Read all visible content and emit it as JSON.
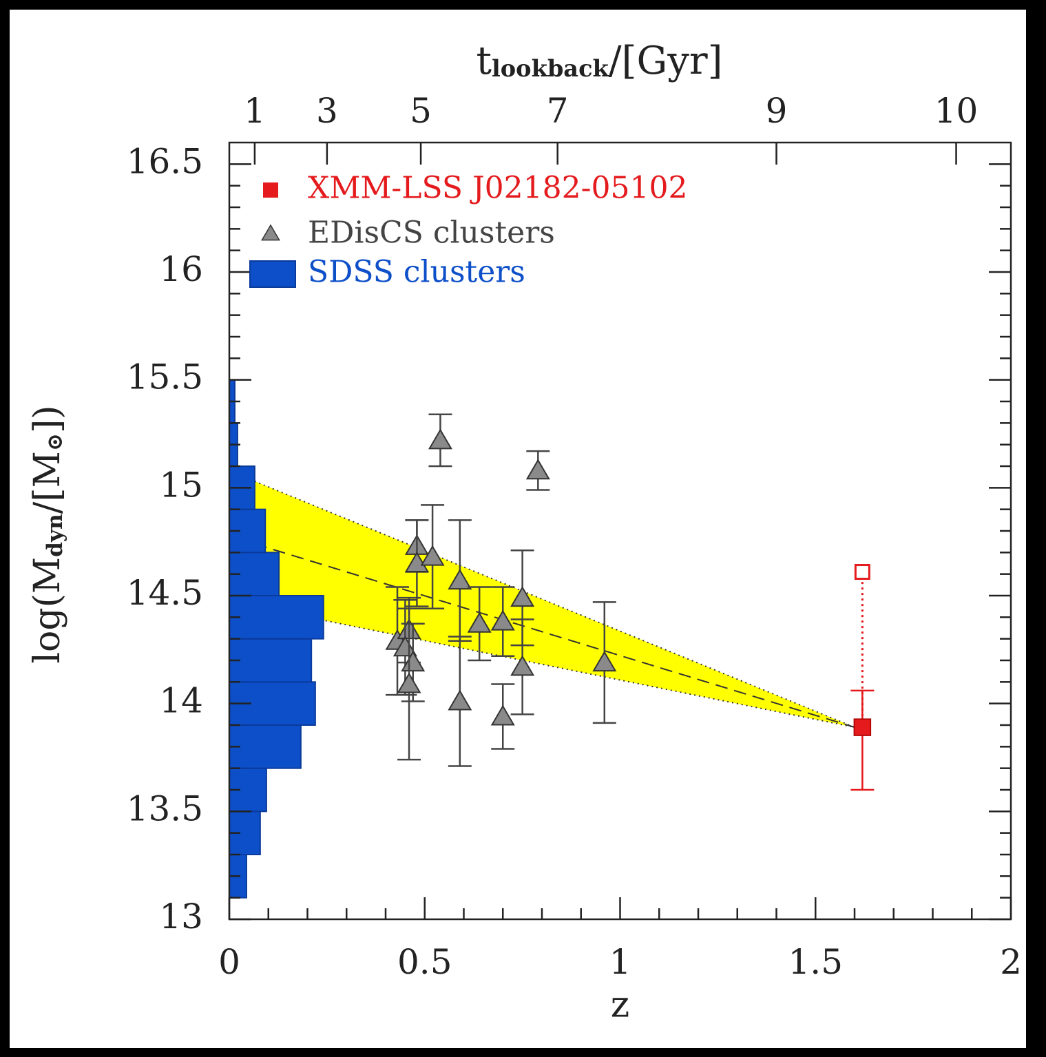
{
  "chart_data": {
    "type": "scatter",
    "xlabel": "z",
    "ylabel_parts": [
      "log(M",
      "dyn",
      "/[M",
      "⊙",
      "])"
    ],
    "x2label_parts": [
      "t",
      "lookback",
      "/[Gyr]"
    ],
    "xlim": [
      0,
      2
    ],
    "ylim": [
      13,
      16.6
    ],
    "xticks": [
      0,
      0.5,
      1,
      1.5,
      2
    ],
    "yticks": [
      13,
      13.5,
      14,
      14.5,
      15,
      15.5,
      16,
      16.5
    ],
    "x2ticks": [
      {
        "value": 0.065,
        "label": "1"
      },
      {
        "value": 0.25,
        "label": "3"
      },
      {
        "value": 0.49,
        "label": "5"
      },
      {
        "value": 0.84,
        "label": "7"
      },
      {
        "value": 1.4,
        "label": "9"
      },
      {
        "value": 1.86,
        "label": "10"
      }
    ],
    "legend": "upper left",
    "band": {
      "color": "#ffff00",
      "x": [
        0.065,
        1.6
      ],
      "upper": [
        15.03,
        13.89
      ],
      "lower": [
        14.45,
        13.89
      ],
      "mid": [
        14.74,
        13.89
      ]
    },
    "histogram": {
      "name": "SDSS clusters",
      "color": "#0d4fc9",
      "bins": [
        13.1,
        13.3,
        13.5,
        13.7,
        13.9,
        14.1,
        14.3,
        14.5,
        14.7,
        14.9,
        15.1,
        15.3,
        15.5
      ],
      "counts": [
        0.044,
        0.079,
        0.095,
        0.183,
        0.22,
        0.21,
        0.241,
        0.127,
        0.092,
        0.065,
        0.021,
        0.014
      ]
    },
    "series": [
      {
        "name": "XMM-LSS J02182-05102",
        "color": "#e41a1c",
        "marker": "square",
        "x": [
          1.62
        ],
        "values": [
          13.89
        ],
        "err_low": [
          0.29
        ],
        "err_high": [
          0.17
        ],
        "open_values": [
          14.61
        ]
      },
      {
        "name": "EDisCS clusters",
        "color": "#8a8a8a",
        "marker": "triangle",
        "x": [
          0.54,
          0.79,
          0.48,
          0.48,
          0.52,
          0.59,
          0.64,
          0.7,
          0.75,
          0.75,
          0.96,
          0.7,
          0.59,
          0.43,
          0.46,
          0.45,
          0.47,
          0.46
        ],
        "values": [
          15.22,
          15.08,
          14.73,
          14.65,
          14.68,
          14.57,
          14.37,
          14.38,
          14.49,
          14.17,
          14.19,
          13.94,
          14.01,
          14.29,
          14.34,
          14.26,
          14.19,
          14.09
        ],
        "errors": [
          0.12,
          0.09,
          0.12,
          0.2,
          0.24,
          0.28,
          0.17,
          0.16,
          0.22,
          0.22,
          0.28,
          0.15,
          0.3,
          0.25,
          0.15,
          0.22,
          0.18,
          0.35
        ]
      }
    ]
  }
}
